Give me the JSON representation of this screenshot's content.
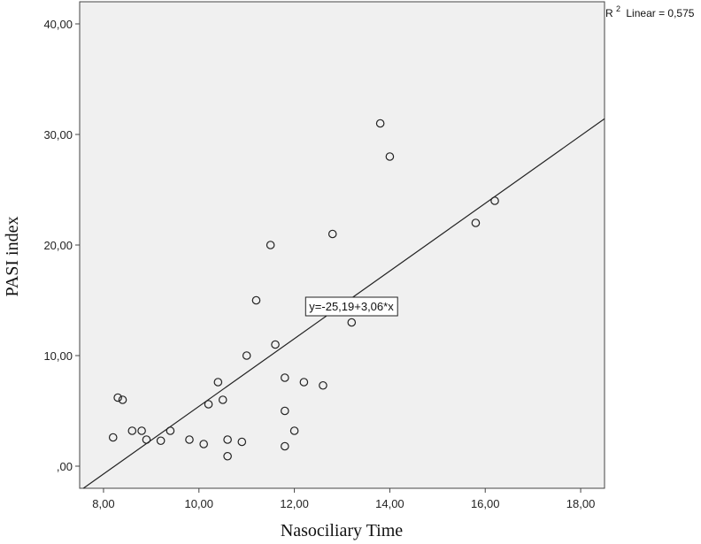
{
  "chart_data": {
    "type": "scatter",
    "title": "",
    "xlabel": "Nasociliary Time",
    "ylabel": "PASI index",
    "xlim": [
      7.5,
      18.5
    ],
    "ylim": [
      -2,
      42
    ],
    "x_ticks": [
      8,
      10,
      12,
      14,
      16,
      18
    ],
    "x_tick_labels": [
      "8,00",
      "10,00",
      "12,00",
      "14,00",
      "16,00",
      "18,00"
    ],
    "y_ticks": [
      0,
      10,
      20,
      30,
      40
    ],
    "y_tick_labels": [
      ",00",
      "10,00",
      "20,00",
      "30,00",
      "40,00"
    ],
    "grid": false,
    "background": "#f0f0f0",
    "marker_color": "#222222",
    "points": [
      {
        "x": 8.2,
        "y": 2.6
      },
      {
        "x": 8.3,
        "y": 6.2
      },
      {
        "x": 8.4,
        "y": 6.0
      },
      {
        "x": 8.6,
        "y": 3.2
      },
      {
        "x": 8.8,
        "y": 3.2
      },
      {
        "x": 8.9,
        "y": 2.4
      },
      {
        "x": 9.2,
        "y": 2.3
      },
      {
        "x": 9.4,
        "y": 3.2
      },
      {
        "x": 9.8,
        "y": 2.4
      },
      {
        "x": 10.1,
        "y": 2.0
      },
      {
        "x": 10.2,
        "y": 5.6
      },
      {
        "x": 10.4,
        "y": 7.6
      },
      {
        "x": 10.5,
        "y": 6.0
      },
      {
        "x": 10.6,
        "y": 2.4
      },
      {
        "x": 10.6,
        "y": 0.9
      },
      {
        "x": 10.9,
        "y": 2.2
      },
      {
        "x": 11.0,
        "y": 10.0
      },
      {
        "x": 11.2,
        "y": 15.0
      },
      {
        "x": 11.5,
        "y": 20.0
      },
      {
        "x": 11.6,
        "y": 11.0
      },
      {
        "x": 11.8,
        "y": 8.0
      },
      {
        "x": 11.8,
        "y": 5.0
      },
      {
        "x": 11.8,
        "y": 1.8
      },
      {
        "x": 12.0,
        "y": 3.2
      },
      {
        "x": 12.2,
        "y": 7.6
      },
      {
        "x": 12.6,
        "y": 7.3
      },
      {
        "x": 12.8,
        "y": 21.0
      },
      {
        "x": 13.2,
        "y": 13.0
      },
      {
        "x": 13.8,
        "y": 31.0
      },
      {
        "x": 14.0,
        "y": 28.0
      },
      {
        "x": 15.8,
        "y": 22.0
      },
      {
        "x": 16.2,
        "y": 24.0
      }
    ],
    "fit_line": {
      "intercept": -25.19,
      "slope": 3.06,
      "equation_label": "y=-25,19+3,06*x",
      "r2_label": "Linear = 0,575",
      "r2_prefix": "R",
      "r2_superscript": "2"
    }
  }
}
